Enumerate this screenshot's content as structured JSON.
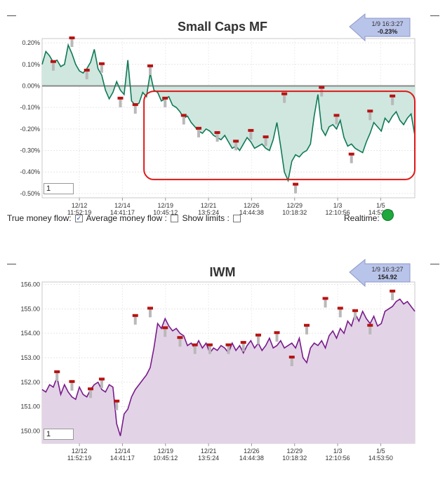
{
  "charts": {
    "mf": {
      "title": "Small Caps MF",
      "badge_time": "1/9 16:3:27",
      "badge_value": "-0.23%",
      "input_value": "1",
      "options": {
        "true_money_flow": "True money flow:",
        "average_money_flow": "Average money flow :",
        "show_limits": "Show limits :",
        "realtime": "Realtime:"
      }
    },
    "iwm": {
      "title": "IWM",
      "badge_time": "1/9 16:3:27",
      "badge_value": "154.92",
      "input_value": "1"
    }
  },
  "x_ticks": [
    {
      "date": "12/12",
      "time": "11:52:19"
    },
    {
      "date": "12/14",
      "time": "14:41:17"
    },
    {
      "date": "12/19",
      "time": "10:45:12"
    },
    {
      "date": "12/21",
      "time": "13:5:24"
    },
    {
      "date": "12/26",
      "time": "14:44:38"
    },
    {
      "date": "12/29",
      "time": "10:18:32"
    },
    {
      "date": "1/3",
      "time": "12:10:56"
    },
    {
      "date": "1/5",
      "time": "14:53:50"
    }
  ],
  "chart_data": [
    {
      "type": "area",
      "title": "Small Caps MF",
      "ylim": [
        -0.52,
        0.22
      ],
      "y_ticks": [
        "0.20%",
        "0.10%",
        "0.00%",
        "-0.10%",
        "-0.20%",
        "-0.30%",
        "-0.40%",
        "-0.50%"
      ],
      "y_tick_values": [
        0.2,
        0.1,
        0.0,
        -0.1,
        -0.2,
        -0.3,
        -0.4,
        -0.5
      ],
      "baseline": 0.0,
      "colors": {
        "line": "#0f7a55",
        "fill": "#cfe7df",
        "highlight": "#e01818"
      },
      "x": [
        0,
        3,
        6,
        9,
        12,
        15,
        18,
        21,
        24,
        27,
        30,
        33,
        36,
        39,
        42,
        45,
        48,
        51,
        54,
        57,
        60,
        63,
        66,
        69,
        72,
        75,
        78,
        81,
        84,
        87,
        90,
        93,
        96,
        99,
        102,
        105,
        108,
        111,
        114,
        117,
        120,
        123,
        126,
        129,
        132,
        135,
        138,
        141,
        144,
        147,
        150,
        153,
        156,
        159,
        162,
        165,
        168,
        171,
        174,
        177,
        180,
        183,
        186,
        189,
        192,
        195,
        198,
        201,
        204,
        207,
        210,
        213,
        216,
        219,
        222,
        225,
        228,
        231,
        234,
        237,
        240,
        243,
        246,
        249,
        252,
        255,
        258,
        261,
        264,
        267,
        270,
        273,
        276,
        279,
        282,
        285,
        288,
        291,
        294,
        297,
        300
      ],
      "values": [
        0.1,
        0.16,
        0.14,
        0.11,
        0.12,
        0.09,
        0.1,
        0.19,
        0.15,
        0.1,
        0.07,
        0.06,
        0.08,
        0.11,
        0.17,
        0.08,
        0.05,
        -0.02,
        -0.06,
        -0.03,
        0.02,
        -0.02,
        -0.04,
        0.12,
        -0.07,
        -0.09,
        -0.08,
        -0.03,
        -0.05,
        0.06,
        -0.02,
        -0.03,
        -0.07,
        -0.06,
        -0.05,
        -0.09,
        -0.1,
        -0.12,
        -0.15,
        -0.14,
        -0.17,
        -0.19,
        -0.21,
        -0.22,
        -0.2,
        -0.21,
        -0.23,
        -0.24,
        -0.25,
        -0.23,
        -0.26,
        -0.29,
        -0.28,
        -0.3,
        -0.27,
        -0.24,
        -0.26,
        -0.29,
        -0.28,
        -0.27,
        -0.29,
        -0.3,
        -0.25,
        -0.17,
        -0.28,
        -0.4,
        -0.44,
        -0.35,
        -0.32,
        -0.33,
        -0.31,
        -0.3,
        -0.27,
        -0.14,
        -0.04,
        -0.2,
        -0.23,
        -0.19,
        -0.18,
        -0.2,
        -0.16,
        -0.24,
        -0.28,
        -0.27,
        -0.29,
        -0.3,
        -0.31,
        -0.26,
        -0.22,
        -0.17,
        -0.19,
        -0.21,
        -0.15,
        -0.17,
        -0.14,
        -0.12,
        -0.16,
        -0.18,
        -0.15,
        -0.13,
        -0.23
      ],
      "markers": [
        {
          "x": 9,
          "y": 0.11
        },
        {
          "x": 24,
          "y": 0.22
        },
        {
          "x": 36,
          "y": 0.07
        },
        {
          "x": 48,
          "y": 0.1
        },
        {
          "x": 63,
          "y": -0.06
        },
        {
          "x": 75,
          "y": -0.09
        },
        {
          "x": 87,
          "y": 0.09
        },
        {
          "x": 99,
          "y": -0.06
        },
        {
          "x": 114,
          "y": -0.14
        },
        {
          "x": 126,
          "y": -0.2
        },
        {
          "x": 141,
          "y": -0.22
        },
        {
          "x": 156,
          "y": -0.26
        },
        {
          "x": 168,
          "y": -0.21
        },
        {
          "x": 180,
          "y": -0.24
        },
        {
          "x": 195,
          "y": -0.04
        },
        {
          "x": 204,
          "y": -0.46
        },
        {
          "x": 225,
          "y": -0.01
        },
        {
          "x": 237,
          "y": -0.14
        },
        {
          "x": 249,
          "y": -0.32
        },
        {
          "x": 264,
          "y": -0.12
        },
        {
          "x": 282,
          "y": -0.05
        }
      ]
    },
    {
      "type": "area",
      "title": "IWM",
      "ylim": [
        149.5,
        156.1
      ],
      "y_ticks": [
        "156.00",
        "155.00",
        "154.00",
        "153.00",
        "152.00",
        "151.00",
        "150.00"
      ],
      "y_tick_values": [
        156,
        155,
        154,
        153,
        152,
        151,
        150
      ],
      "colors": {
        "line": "#7a1a8c",
        "fill": "#e2d4e6"
      },
      "x": [
        0,
        3,
        6,
        9,
        12,
        15,
        18,
        21,
        24,
        27,
        30,
        33,
        36,
        39,
        42,
        45,
        48,
        51,
        54,
        57,
        60,
        63,
        66,
        69,
        72,
        75,
        78,
        81,
        84,
        87,
        90,
        93,
        96,
        99,
        102,
        105,
        108,
        111,
        114,
        117,
        120,
        123,
        126,
        129,
        132,
        135,
        138,
        141,
        144,
        147,
        150,
        153,
        156,
        159,
        162,
        165,
        168,
        171,
        174,
        177,
        180,
        183,
        186,
        189,
        192,
        195,
        198,
        201,
        204,
        207,
        210,
        213,
        216,
        219,
        222,
        225,
        228,
        231,
        234,
        237,
        240,
        243,
        246,
        249,
        252,
        255,
        258,
        261,
        264,
        267,
        270,
        273,
        276,
        279,
        282,
        285,
        288,
        291,
        294,
        297,
        300
      ],
      "values": [
        151.7,
        151.6,
        151.9,
        151.8,
        152.2,
        151.5,
        151.9,
        151.6,
        151.4,
        151.3,
        151.8,
        151.5,
        151.4,
        151.7,
        151.9,
        152.0,
        151.7,
        151.6,
        151.9,
        151.8,
        150.3,
        149.8,
        150.7,
        150.9,
        151.4,
        151.7,
        151.9,
        152.1,
        152.3,
        152.6,
        153.4,
        154.4,
        154.2,
        154.6,
        154.3,
        154.1,
        154.2,
        154.0,
        153.9,
        153.5,
        153.6,
        153.4,
        153.7,
        153.4,
        153.6,
        153.2,
        153.4,
        153.3,
        153.5,
        153.4,
        153.2,
        153.6,
        153.3,
        153.5,
        153.2,
        153.5,
        153.7,
        153.4,
        153.6,
        153.3,
        153.5,
        153.8,
        153.4,
        153.5,
        153.7,
        153.4,
        153.5,
        153.6,
        153.4,
        153.8,
        153.0,
        152.8,
        153.4,
        153.6,
        153.5,
        153.7,
        153.4,
        153.9,
        154.1,
        153.8,
        154.2,
        154.0,
        154.5,
        154.3,
        154.8,
        154.5,
        154.9,
        154.6,
        154.4,
        154.7,
        154.3,
        154.4,
        154.9,
        155.0,
        155.1,
        155.3,
        155.4,
        155.2,
        155.3,
        155.1,
        154.9
      ],
      "markers": [
        {
          "x": 12,
          "y": 152.4
        },
        {
          "x": 24,
          "y": 152.0
        },
        {
          "x": 39,
          "y": 151.7
        },
        {
          "x": 48,
          "y": 152.1
        },
        {
          "x": 60,
          "y": 151.2
        },
        {
          "x": 75,
          "y": 154.7
        },
        {
          "x": 87,
          "y": 155.0
        },
        {
          "x": 99,
          "y": 154.2
        },
        {
          "x": 111,
          "y": 153.8
        },
        {
          "x": 123,
          "y": 153.5
        },
        {
          "x": 135,
          "y": 153.5
        },
        {
          "x": 150,
          "y": 153.5
        },
        {
          "x": 162,
          "y": 153.6
        },
        {
          "x": 174,
          "y": 153.9
        },
        {
          "x": 189,
          "y": 154.0
        },
        {
          "x": 201,
          "y": 153.0
        },
        {
          "x": 213,
          "y": 154.3
        },
        {
          "x": 228,
          "y": 155.4
        },
        {
          "x": 240,
          "y": 155.0
        },
        {
          "x": 252,
          "y": 154.9
        },
        {
          "x": 264,
          "y": 154.3
        },
        {
          "x": 282,
          "y": 155.7
        }
      ]
    }
  ]
}
